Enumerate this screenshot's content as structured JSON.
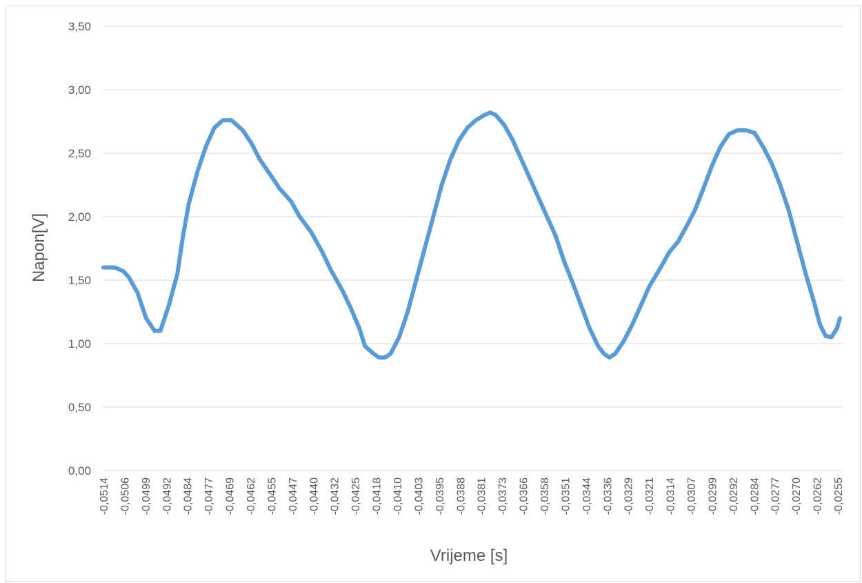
{
  "chart_data": {
    "type": "line",
    "title": "",
    "xlabel": "Vrijeme [s]",
    "ylabel": "Napon[V]",
    "ylim": [
      0,
      3.5
    ],
    "yticks": [
      "0,00",
      "0,50",
      "1,00",
      "1,50",
      "2,00",
      "2,50",
      "3,00",
      "3,50"
    ],
    "yticks_values": [
      0,
      0.5,
      1.0,
      1.5,
      2.0,
      2.5,
      3.0,
      3.5
    ],
    "xlim": [
      -0.0514,
      -0.0254
    ],
    "xticks": [
      "-0,0514",
      "-0,0506",
      "-0,0499",
      "-0,0492",
      "-0,0484",
      "-0,0477",
      "-0,0469",
      "-0,0462",
      "-0,0455",
      "-0,0447",
      "-0,0440",
      "-0,0432",
      "-0,0425",
      "-0,0418",
      "-0,0410",
      "-0,0403",
      "-0,0395",
      "-0,0388",
      "-0,0381",
      "-0,0373",
      "-0,0366",
      "-0,0358",
      "-0,0351",
      "-0,0344",
      "-0,0336",
      "-0,0329",
      "-0,0321",
      "-0,0314",
      "-0,0307",
      "-0,0299",
      "-0,0292",
      "-0,0284",
      "-0,0277",
      "-0,0270",
      "-0,0262",
      "-0,0255"
    ],
    "grid": true,
    "legend": "none",
    "line_color": "#5b9bd5",
    "series": [
      {
        "x": [
          -0.0514,
          -0.051,
          -0.0507,
          -0.0505,
          -0.0502,
          -0.0499,
          -0.0496,
          -0.0494,
          -0.0491,
          -0.0488,
          -0.0486,
          -0.0484,
          -0.0481,
          -0.0478,
          -0.0475,
          -0.0472,
          -0.0469,
          -0.0467,
          -0.0465,
          -0.0462,
          -0.0459,
          -0.0455,
          -0.0452,
          -0.0448,
          -0.0445,
          -0.0441,
          -0.0437,
          -0.0434,
          -0.043,
          -0.0427,
          -0.0424,
          -0.0422,
          -0.0419,
          -0.0417,
          -0.0415,
          -0.0413,
          -0.041,
          -0.0407,
          -0.0404,
          -0.0401,
          -0.0398,
          -0.0395,
          -0.0392,
          -0.0389,
          -0.0386,
          -0.0383,
          -0.038,
          -0.0378,
          -0.0376,
          -0.0373,
          -0.037,
          -0.0367,
          -0.0364,
          -0.0361,
          -0.0358,
          -0.0355,
          -0.0352,
          -0.0349,
          -0.0346,
          -0.0343,
          -0.034,
          -0.0338,
          -0.0336,
          -0.0334,
          -0.0331,
          -0.0328,
          -0.0325,
          -0.0322,
          -0.0318,
          -0.0315,
          -0.0312,
          -0.0309,
          -0.0306,
          -0.0303,
          -0.03,
          -0.0297,
          -0.0294,
          -0.0291,
          -0.0288,
          -0.0285,
          -0.0282,
          -0.0279,
          -0.0276,
          -0.0273,
          -0.027,
          -0.0267,
          -0.0264,
          -0.0262,
          -0.026,
          -0.0258,
          -0.0256,
          -0.0255
        ],
        "y": [
          1.6,
          1.6,
          1.57,
          1.52,
          1.4,
          1.2,
          1.1,
          1.1,
          1.3,
          1.55,
          1.85,
          2.1,
          2.35,
          2.55,
          2.7,
          2.76,
          2.76,
          2.72,
          2.68,
          2.58,
          2.45,
          2.32,
          2.22,
          2.12,
          2.0,
          1.88,
          1.72,
          1.58,
          1.42,
          1.28,
          1.12,
          0.98,
          0.92,
          0.89,
          0.89,
          0.92,
          1.05,
          1.25,
          1.5,
          1.75,
          2.0,
          2.25,
          2.45,
          2.6,
          2.7,
          2.76,
          2.8,
          2.82,
          2.8,
          2.72,
          2.6,
          2.45,
          2.3,
          2.15,
          2.0,
          1.85,
          1.65,
          1.48,
          1.3,
          1.12,
          0.98,
          0.92,
          0.89,
          0.92,
          1.02,
          1.15,
          1.3,
          1.45,
          1.6,
          1.72,
          1.8,
          1.92,
          2.05,
          2.22,
          2.4,
          2.55,
          2.65,
          2.68,
          2.68,
          2.66,
          2.55,
          2.42,
          2.25,
          2.05,
          1.8,
          1.55,
          1.32,
          1.15,
          1.06,
          1.05,
          1.12,
          1.2
        ]
      }
    ]
  }
}
